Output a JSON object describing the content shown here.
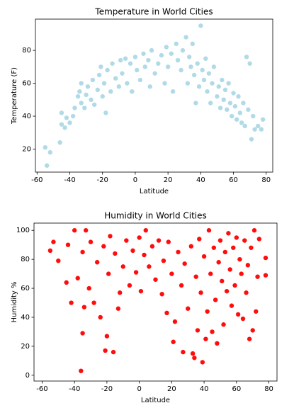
{
  "chart_data": [
    {
      "type": "scatter",
      "title": "Temperature in World Cities",
      "x_label": "Latitude",
      "y_label": "Temperature (F)",
      "color": "#add8e6",
      "xlim": [
        -61,
        84
      ],
      "ylim": [
        6,
        99
      ],
      "xticks": [
        -60,
        -40,
        -20,
        0,
        20,
        40,
        60,
        80
      ],
      "yticks": [
        20,
        40,
        60,
        80
      ],
      "x": [
        -54,
        -55,
        -52,
        -46,
        -45,
        -45,
        -43,
        -42,
        -40,
        -38,
        -37,
        -35,
        -34,
        -33,
        -33,
        -31,
        -30,
        -29,
        -27,
        -26,
        -25,
        -23,
        -22,
        -21,
        -20,
        -19,
        -18,
        -17,
        -15,
        -14,
        -12,
        -10,
        -9,
        -8,
        -6,
        -5,
        -3,
        -2,
        0,
        1,
        3,
        5,
        6,
        8,
        9,
        10,
        12,
        14,
        16,
        18,
        19,
        20,
        22,
        23,
        25,
        26,
        28,
        29,
        31,
        32,
        33,
        34,
        35,
        36,
        37,
        38,
        39,
        40,
        41,
        42,
        43,
        44,
        45,
        46,
        47,
        48,
        50,
        51,
        52,
        53,
        54,
        55,
        56,
        57,
        58,
        59,
        60,
        61,
        62,
        63,
        64,
        65,
        66,
        67,
        68,
        69,
        70,
        71,
        72,
        73,
        75,
        78,
        77
      ],
      "values": [
        10,
        21,
        18,
        24,
        35,
        42,
        33,
        39,
        36,
        40,
        45,
        52,
        55,
        48,
        60,
        45,
        53,
        58,
        50,
        62,
        47,
        56,
        65,
        70,
        52,
        60,
        42,
        68,
        55,
        72,
        63,
        58,
        74,
        66,
        75,
        60,
        72,
        55,
        76,
        68,
        62,
        78,
        70,
        74,
        58,
        80,
        66,
        72,
        77,
        60,
        82,
        70,
        78,
        55,
        84,
        74,
        68,
        80,
        88,
        60,
        76,
        70,
        84,
        65,
        48,
        72,
        58,
        95,
        68,
        62,
        75,
        55,
        66,
        48,
        60,
        70,
        52,
        58,
        45,
        62,
        50,
        56,
        44,
        60,
        48,
        40,
        54,
        46,
        38,
        52,
        42,
        36,
        48,
        34,
        76,
        44,
        72,
        26,
        40,
        32,
        34,
        38,
        32
      ]
    },
    {
      "type": "scatter",
      "title": "Humidity in World Cities",
      "x_label": "Latitude",
      "y_label": "Humidity %",
      "color": "#ff0000",
      "xlim": [
        -65,
        85
      ],
      "ylim": [
        -4,
        105
      ],
      "xticks": [
        -60,
        -40,
        -20,
        0,
        20,
        40,
        60,
        80
      ],
      "yticks": [
        0,
        20,
        40,
        60,
        80,
        100
      ],
      "x": [
        -55,
        -53,
        -50,
        -45,
        -44,
        -42,
        -40,
        -38,
        -36,
        -35,
        -35,
        -34,
        -33,
        -31,
        -30,
        -28,
        -26,
        -24,
        -22,
        -21,
        -20,
        -19,
        -18,
        -16,
        -15,
        -13,
        -12,
        -10,
        -8,
        -6,
        -4,
        -2,
        0,
        1,
        3,
        4,
        6,
        8,
        10,
        12,
        14,
        15,
        17,
        18,
        20,
        21,
        22,
        24,
        26,
        27,
        28,
        30,
        32,
        33,
        34,
        35,
        36,
        37,
        38,
        39,
        40,
        41,
        42,
        43,
        44,
        45,
        46,
        47,
        48,
        49,
        50,
        51,
        52,
        53,
        54,
        55,
        56,
        57,
        58,
        59,
        60,
        61,
        62,
        63,
        64,
        65,
        66,
        67,
        68,
        69,
        70,
        71,
        72,
        73,
        74,
        78,
        78
      ],
      "values": [
        86,
        92,
        79,
        64,
        90,
        50,
        100,
        67,
        3,
        29,
        85,
        47,
        100,
        60,
        92,
        50,
        78,
        40,
        89,
        17,
        27,
        70,
        96,
        16,
        84,
        46,
        57,
        75,
        93,
        62,
        86,
        71,
        95,
        58,
        83,
        100,
        75,
        89,
        66,
        93,
        56,
        79,
        43,
        92,
        70,
        23,
        37,
        85,
        62,
        16,
        77,
        46,
        89,
        15,
        12,
        68,
        31,
        94,
        57,
        9,
        82,
        25,
        44,
        100,
        70,
        30,
        88,
        52,
        22,
        78,
        93,
        65,
        35,
        85,
        58,
        98,
        73,
        48,
        88,
        62,
        95,
        42,
        80,
        70,
        39,
        93,
        57,
        76,
        25,
        88,
        31,
        100,
        44,
        68,
        94,
        81,
        69
      ]
    }
  ]
}
